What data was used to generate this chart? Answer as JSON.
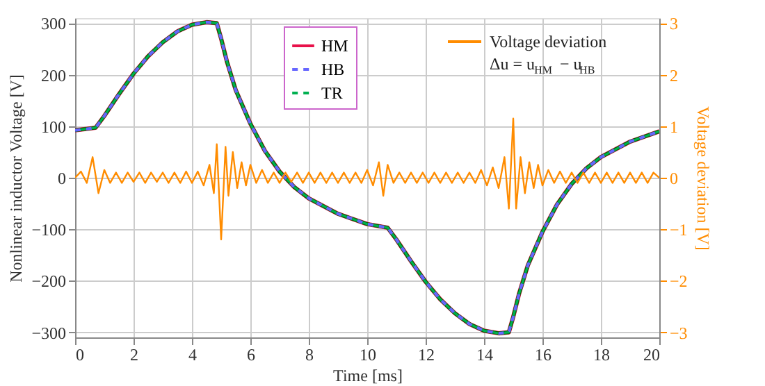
{
  "chart_data": {
    "type": "line",
    "xlabel": "Time [ms]",
    "ylabel": "Nonlinear inductor Voltage [V]",
    "y2label": "Voltage deviation [V]",
    "x": [
      0,
      0.7,
      1,
      1.5,
      2,
      2.5,
      3,
      3.5,
      4,
      4.5,
      4.85,
      5,
      5.2,
      5.5,
      6,
      6.5,
      7,
      7.5,
      8,
      9,
      10,
      10.7,
      11,
      11.5,
      12,
      12.5,
      13,
      13.5,
      14,
      14.5,
      14.85,
      15,
      15.2,
      15.5,
      16,
      16.5,
      17,
      17.5,
      18,
      19,
      20
    ],
    "series": [
      {
        "name": "HM",
        "color": "#e8114a",
        "line_style": "solid",
        "values": [
          92,
          97,
          120,
          162,
          202,
          236,
          263,
          284,
          297,
          302,
          300,
          270,
          225,
          170,
          105,
          52,
          12,
          -18,
          -40,
          -70,
          -90,
          -97,
          -120,
          -162,
          -202,
          -236,
          -263,
          -284,
          -297,
          -302,
          -300,
          -270,
          -225,
          -170,
          -105,
          -52,
          -12,
          18,
          40,
          70,
          90
        ]
      },
      {
        "color": "#006400",
        "line_style": "solid",
        "values": [
          92,
          97,
          120,
          162,
          202,
          236,
          263,
          284,
          297,
          302,
          300,
          270,
          225,
          170,
          105,
          52,
          12,
          -18,
          -40,
          -70,
          -90,
          -97,
          -120,
          -162,
          -202,
          -236,
          -263,
          -284,
          -297,
          -302,
          -300,
          -270,
          -225,
          -170,
          -105,
          -52,
          -12,
          18,
          40,
          70,
          90
        ]
      },
      {
        "name": "HB",
        "color": "#6666ff",
        "line_style": "dashed",
        "values": [
          92,
          97,
          120,
          162,
          202,
          236,
          263,
          284,
          297,
          302,
          300,
          270,
          225,
          170,
          105,
          52,
          12,
          -18,
          -40,
          -70,
          -90,
          -97,
          -120,
          -162,
          -202,
          -236,
          -263,
          -284,
          -297,
          -302,
          -300,
          -270,
          -225,
          -170,
          -105,
          -52,
          -12,
          18,
          40,
          70,
          90
        ]
      },
      {
        "name": "TR",
        "color": "#00b050",
        "line_style": "dashed",
        "values": [
          92,
          97,
          120,
          162,
          202,
          236,
          263,
          284,
          297,
          302,
          300,
          270,
          225,
          170,
          105,
          52,
          12,
          -18,
          -40,
          -70,
          -90,
          -97,
          -120,
          -162,
          -202,
          -236,
          -263,
          -284,
          -297,
          -302,
          -300,
          -270,
          -225,
          -170,
          -105,
          -52,
          -12,
          18,
          40,
          70,
          90
        ]
      },
      {
        "name": "Voltage deviation\nΔu = u$_{HM}$ − u$_{HB}$",
        "color": "#ff8c00",
        "line_style": "solid",
        "axis": "y2",
        "x": [
          0,
          0.2,
          0.4,
          0.6,
          0.8,
          1.0,
          1.2,
          1.4,
          1.6,
          1.8,
          2.0,
          2.2,
          2.4,
          2.6,
          2.8,
          3.0,
          3.2,
          3.4,
          3.6,
          3.8,
          4.0,
          4.2,
          4.4,
          4.6,
          4.75,
          4.85,
          5.0,
          5.15,
          5.25,
          5.4,
          5.55,
          5.7,
          5.85,
          6.0,
          6.2,
          6.4,
          6.6,
          6.8,
          7.0,
          7.2,
          7.4,
          7.6,
          7.8,
          8.0,
          8.2,
          8.4,
          8.6,
          8.8,
          9.0,
          9.2,
          9.4,
          9.6,
          9.8,
          10.0,
          10.2,
          10.4,
          10.55,
          10.7,
          10.9,
          11.1,
          11.3,
          11.5,
          11.7,
          11.9,
          12.1,
          12.3,
          12.5,
          12.7,
          12.9,
          13.1,
          13.3,
          13.5,
          13.7,
          13.9,
          14.1,
          14.3,
          14.5,
          14.7,
          14.85,
          15.0,
          15.1,
          15.25,
          15.4,
          15.55,
          15.7,
          15.85,
          16.0,
          16.2,
          16.4,
          16.6,
          16.8,
          17.0,
          17.2,
          17.4,
          17.6,
          17.8,
          18.0,
          18.2,
          18.4,
          18.6,
          18.8,
          19.0,
          19.2,
          19.4,
          19.6,
          19.8,
          20.0
        ],
        "values": [
          0,
          0.12,
          -0.1,
          0.4,
          -0.3,
          0.15,
          -0.1,
          0.1,
          -0.1,
          0.1,
          -0.08,
          0.1,
          -0.1,
          0.1,
          -0.08,
          0.1,
          -0.1,
          0.1,
          -0.1,
          0.12,
          -0.1,
          0.12,
          -0.15,
          0.25,
          -0.3,
          0.65,
          -1.2,
          0.6,
          -0.35,
          0.5,
          -0.2,
          0.3,
          -0.15,
          0.25,
          -0.1,
          0.15,
          -0.1,
          0.1,
          -0.1,
          0.1,
          -0.08,
          0.1,
          -0.1,
          0.1,
          -0.1,
          0.1,
          -0.1,
          0.1,
          -0.1,
          0.1,
          -0.1,
          0.1,
          -0.1,
          0.15,
          -0.15,
          0.3,
          -0.35,
          0.25,
          -0.1,
          0.1,
          -0.1,
          0.1,
          -0.1,
          0.1,
          -0.1,
          0.1,
          -0.1,
          0.1,
          -0.1,
          0.1,
          -0.1,
          0.1,
          -0.1,
          0.15,
          -0.15,
          0.2,
          -0.2,
          0.4,
          -0.6,
          1.15,
          -0.6,
          0.4,
          -0.3,
          0.3,
          -0.2,
          0.25,
          -0.15,
          0.15,
          -0.1,
          0.12,
          -0.1,
          0.1,
          -0.1,
          0.1,
          -0.1,
          0.1,
          -0.1,
          0.1,
          -0.1,
          0.1,
          -0.1,
          0.1,
          -0.1,
          0.1,
          -0.1,
          0.1,
          0
        ]
      }
    ],
    "xlim": [
      0,
      20
    ],
    "xticks": [
      0,
      2,
      4,
      6,
      8,
      10,
      12,
      14,
      16,
      18,
      20
    ],
    "ylim": [
      -310,
      310
    ],
    "yticks": [
      -300,
      -200,
      -100,
      0,
      100,
      200,
      300
    ],
    "y2lim": [
      -3.1,
      3.1
    ],
    "y2ticks": [
      -3,
      -2,
      -1,
      0,
      1,
      2,
      3
    ],
    "grid": true,
    "legend": "top"
  }
}
